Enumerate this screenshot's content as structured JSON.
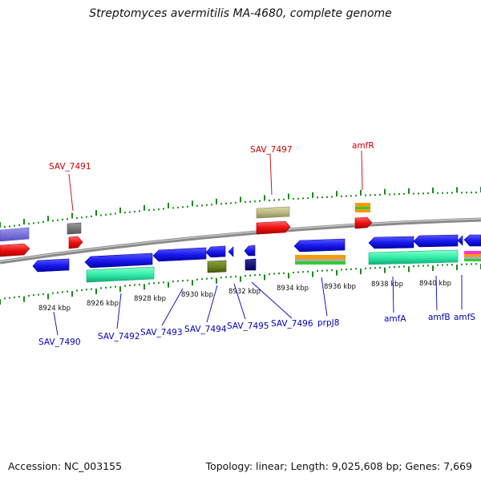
{
  "title": "Streptomyces avermitilis MA-4680, complete genome",
  "footer": {
    "accession": "Accession: NC_003155",
    "topology": "Topology: linear; Length: 9,025,608 bp; Genes: 7,669"
  },
  "colors": {
    "backbone": "#8a8a8a",
    "tick": "#1a8a1a",
    "top_label": "#cc0000",
    "bottom_label": "#0000bb",
    "cds": "#1a1aee",
    "rna": "#ee1111",
    "cog": "#33eeaa"
  },
  "chart_data": {
    "type": "genome-map",
    "scale_labels": [
      "8924 kbp",
      "8926 kbp",
      "8928 kbp",
      "8930 kbp",
      "8932 kbp",
      "8934 kbp",
      "8936 kbp",
      "8938 kbp",
      "8940 kbp"
    ],
    "top_genes": [
      "SAV_7491",
      "SAV_7497",
      "amfR"
    ],
    "bottom_genes": [
      "SAV_7490",
      "SAV_7492",
      "SAV_7493",
      "SAV_7494",
      "SAV_7495",
      "SAV_7496",
      "prpJ8",
      "amfA",
      "amfB",
      "amfS"
    ]
  }
}
